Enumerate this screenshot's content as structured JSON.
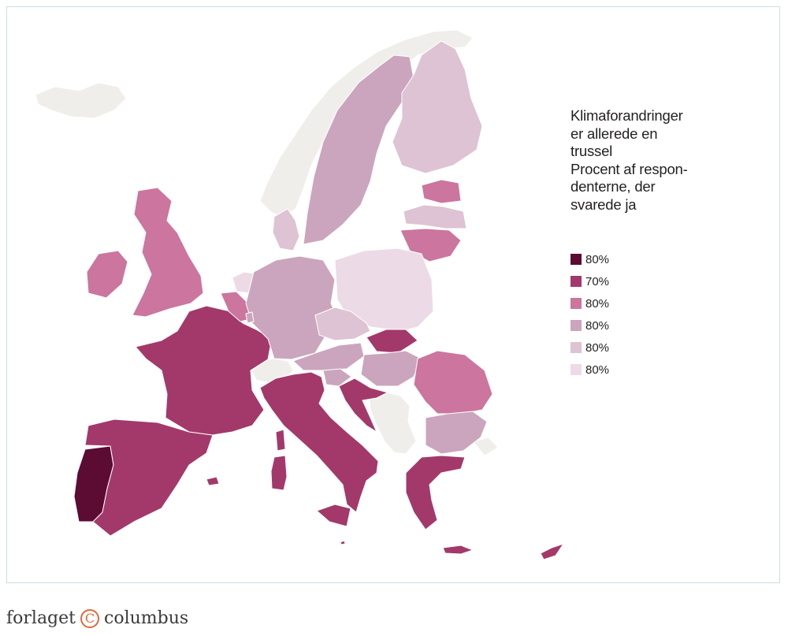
{
  "title_lines": [
    "Klimaforandringer",
    "er allerede en",
    "trussel",
    "Procent af respon-",
    "denterne, der",
    "svarede ja"
  ],
  "legend": [
    {
      "label": "80%",
      "color": "#5c0b33"
    },
    {
      "label": "70%",
      "color": "#a3396a"
    },
    {
      "label": "80%",
      "color": "#cc759e"
    },
    {
      "label": "80%",
      "color": "#cba5bd"
    },
    {
      "label": "80%",
      "color": "#ddc3d3"
    },
    {
      "label": "80%",
      "color": "#ecdbe6"
    }
  ],
  "non_member_color": "#f0eeea",
  "footer": {
    "left": "forlaget",
    "logo": "C",
    "right": "columbus"
  }
}
